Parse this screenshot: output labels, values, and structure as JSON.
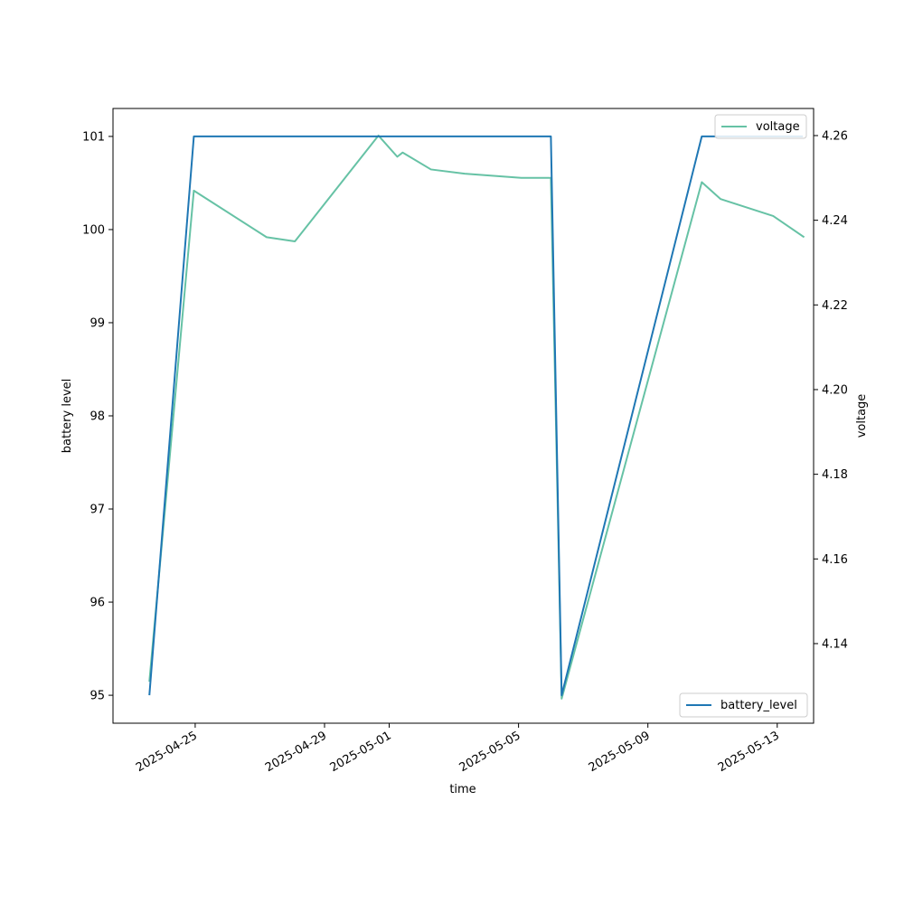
{
  "chart_data": {
    "type": "line",
    "title": "",
    "xlabel": "time",
    "ylabel": "battery level",
    "y2label": "voltage",
    "xlim": [
      "2025-04-22T11:00",
      "2025-05-14T03:00"
    ],
    "ylim": [
      94.7,
      101.3
    ],
    "y2lim": [
      4.1212,
      4.2664
    ],
    "x_ticks": [
      "2025-04-25",
      "2025-04-29",
      "2025-05-01",
      "2025-05-05",
      "2025-05-09",
      "2025-05-13"
    ],
    "y_ticks": [
      95,
      96,
      97,
      98,
      99,
      100,
      101
    ],
    "y2_ticks": [
      4.14,
      4.16,
      4.18,
      4.2,
      4.22,
      4.24,
      4.26
    ],
    "grid": false,
    "series": [
      {
        "name": "battery_level",
        "axis": "left",
        "color": "#1f77b4",
        "legend_position": "lower-right",
        "x": [
          "2025-04-23T14:00",
          "2025-04-24T23:00",
          "2025-05-06T00:00",
          "2025-05-06T08:00",
          "2025-05-10T16:00",
          "2025-05-13T19:00"
        ],
        "y": [
          95,
          101,
          101,
          95,
          101,
          101
        ]
      },
      {
        "name": "voltage",
        "axis": "right",
        "color": "#66c2a5",
        "legend_position": "upper-right",
        "x": [
          "2025-04-23T14:00",
          "2025-04-24T23:00",
          "2025-04-27T05:00",
          "2025-04-28T02:00",
          "2025-04-30T16:00",
          "2025-05-01T06:00",
          "2025-05-01T10:00",
          "2025-05-02T07:00",
          "2025-05-03T08:00",
          "2025-05-05T02:00",
          "2025-05-06T00:00",
          "2025-05-06T08:00",
          "2025-05-10T16:00",
          "2025-05-11T06:00",
          "2025-05-12T21:00",
          "2025-05-13T20:00"
        ],
        "y": [
          4.131,
          4.247,
          4.236,
          4.235,
          4.26,
          4.255,
          4.256,
          4.252,
          4.251,
          4.25,
          4.25,
          4.127,
          4.249,
          4.245,
          4.241,
          4.236
        ]
      }
    ]
  }
}
